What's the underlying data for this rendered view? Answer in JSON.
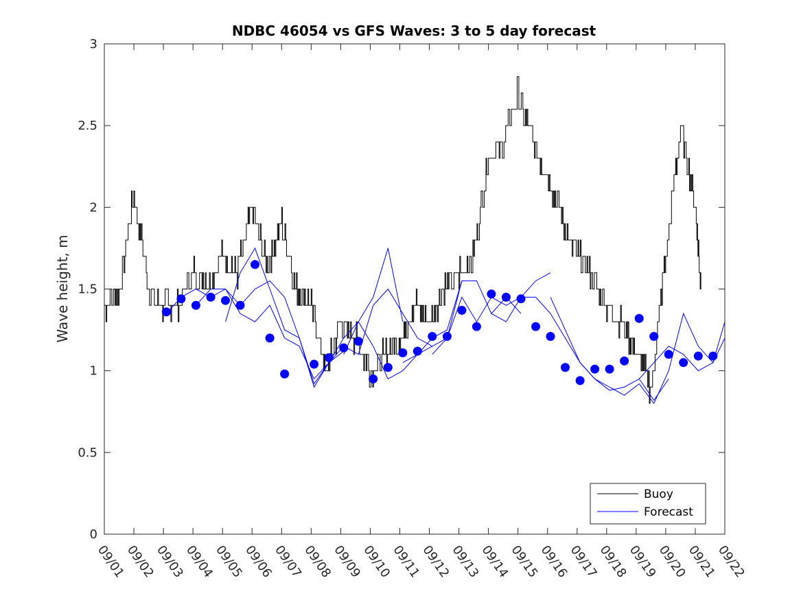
{
  "chart_data": {
    "type": "line",
    "title": "NDBC 46054 vs GFS Waves: 3 to 5 day forecast",
    "xlabel": "",
    "ylabel": "Wave height, m",
    "xlim": [
      0,
      21
    ],
    "ylim": [
      0,
      3
    ],
    "yticks": [
      0,
      0.5,
      1,
      1.5,
      2,
      2.5,
      3
    ],
    "ytick_labels": [
      "0",
      "0.5",
      "1",
      "1.5",
      "2",
      "2.5",
      "3"
    ],
    "xticks": [
      0,
      1,
      2,
      3,
      4,
      5,
      6,
      7,
      8,
      9,
      10,
      11,
      12,
      13,
      14,
      15,
      16,
      17,
      18,
      19,
      20,
      21
    ],
    "xtick_labels": [
      "09/01",
      "09/02",
      "09/03",
      "09/04",
      "09/05",
      "09/06",
      "09/07",
      "09/08",
      "09/09",
      "09/10",
      "09/11",
      "09/12",
      "09/13",
      "09/14",
      "09/15",
      "09/16",
      "09/17",
      "09/18",
      "09/19",
      "09/20",
      "09/21",
      "09/22"
    ],
    "x_units": "days since 09/01",
    "legend": {
      "placement": "bottom-right",
      "entries": [
        "Buoy",
        "Forecast"
      ]
    },
    "colors": {
      "buoy": "#000000",
      "forecast": "#0000ff",
      "axis": "#262626"
    },
    "series": [
      {
        "name": "Buoy",
        "color": "#000000",
        "x": [
          0,
          0.5,
          1,
          1.5,
          2,
          2.5,
          3,
          3.5,
          4,
          4.5,
          5,
          5.5,
          6,
          6.5,
          7,
          7.5,
          8,
          8.5,
          9,
          9.5,
          10,
          10.5,
          11,
          11.5,
          12,
          12.5,
          13,
          13.5,
          14,
          14.5,
          15,
          15.5,
          16,
          16.5,
          17,
          17.5,
          18,
          18.5,
          19,
          19.5,
          20,
          20.2
        ],
        "y": [
          1.4,
          1.5,
          2.1,
          1.5,
          1.4,
          1.4,
          1.6,
          1.55,
          1.7,
          1.6,
          2.0,
          1.65,
          1.9,
          1.5,
          1.4,
          1.0,
          1.3,
          1.2,
          1.0,
          1.1,
          1.2,
          1.4,
          1.3,
          1.5,
          1.6,
          1.7,
          2.3,
          2.4,
          2.7,
          2.4,
          2.2,
          1.9,
          1.7,
          1.6,
          1.4,
          1.3,
          1.1,
          0.9,
          1.7,
          2.5,
          2.0,
          1.5
        ],
        "noise": 0.08
      },
      {
        "name": "Forecast",
        "color": "#0000ff",
        "runs": [
          {
            "x": [
              2.1,
              2.6,
              3.1,
              3.6,
              4.1,
              4.6,
              5.1,
              5.6,
              6.1
            ],
            "y": [
              1.35,
              1.45,
              1.5,
              1.45,
              1.5,
              1.4,
              1.5,
              1.55,
              1.45
            ]
          },
          {
            "x": [
              3.1,
              3.6,
              4.1,
              4.6,
              5.1,
              5.6,
              6.1,
              6.6,
              7.1
            ],
            "y": [
              1.4,
              1.5,
              1.5,
              1.35,
              1.3,
              1.4,
              1.2,
              1.15,
              0.95
            ]
          },
          {
            "x": [
              4.1,
              4.6,
              5.1,
              5.6,
              6.1,
              6.6,
              7.1,
              7.6,
              8.1
            ],
            "y": [
              1.3,
              1.6,
              1.75,
              1.5,
              1.25,
              1.2,
              0.92,
              1.05,
              1.12
            ]
          },
          {
            "x": [
              6.1,
              6.6,
              7.1,
              7.6,
              8.1,
              8.6,
              9.1,
              9.6,
              10.1
            ],
            "y": [
              1.45,
              1.2,
              0.9,
              1.05,
              1.2,
              1.3,
              1.45,
              1.75,
              1.3
            ]
          },
          {
            "x": [
              7.1,
              7.6,
              8.1,
              8.6,
              9.1,
              9.6,
              10.1,
              10.6,
              11.1
            ],
            "y": [
              0.95,
              1.05,
              1.15,
              1.1,
              1.4,
              1.5,
              1.35,
              1.2,
              1.15
            ]
          },
          {
            "x": [
              8.1,
              8.6,
              9.1,
              9.6,
              10.1,
              10.6,
              11.1,
              11.6,
              12.1
            ],
            "y": [
              1.1,
              1.3,
              1.15,
              0.95,
              1.0,
              1.1,
              1.15,
              1.2,
              1.55
            ]
          },
          {
            "x": [
              10.1,
              10.6,
              11.1,
              11.6,
              12.1,
              12.6,
              13.1,
              13.6,
              14.1
            ],
            "y": [
              1.05,
              1.1,
              1.2,
              1.25,
              1.55,
              1.55,
              1.35,
              1.45,
              1.35
            ]
          },
          {
            "x": [
              11.1,
              11.6,
              12.1,
              12.6,
              13.1,
              13.6,
              14.1,
              14.6,
              15.1
            ],
            "y": [
              1.1,
              1.2,
              1.45,
              1.3,
              1.45,
              1.4,
              1.45,
              1.55,
              1.6
            ]
          },
          {
            "x": [
              13.1,
              13.6,
              14.1,
              14.6,
              15.1,
              15.6,
              16.1,
              16.6,
              17.1
            ],
            "y": [
              1.35,
              1.3,
              1.45,
              1.45,
              1.35,
              1.2,
              1.05,
              0.95,
              0.9
            ]
          },
          {
            "x": [
              15.1,
              15.6,
              16.1,
              16.6,
              17.1,
              17.6,
              18.1,
              18.6,
              19.1
            ],
            "y": [
              1.45,
              1.25,
              1.05,
              0.95,
              0.88,
              0.9,
              0.95,
              0.82,
              0.95
            ]
          },
          {
            "x": [
              17.1,
              17.6,
              18.1,
              18.6,
              19.1,
              19.6,
              20.1,
              20.6,
              21.0
            ],
            "y": [
              0.9,
              0.85,
              0.92,
              0.8,
              1.0,
              1.35,
              1.15,
              1.05,
              1.3
            ]
          },
          {
            "x": [
              18.1,
              18.6,
              19.1,
              19.6,
              20.1,
              20.6,
              21.0
            ],
            "y": [
              0.95,
              1.05,
              1.15,
              1.1,
              1.0,
              1.05,
              1.2
            ]
          }
        ],
        "markers": {
          "x": [
            2.1,
            2.6,
            3.1,
            3.6,
            4.1,
            4.6,
            5.1,
            5.6,
            6.1,
            7.1,
            7.6,
            8.1,
            8.6,
            9.1,
            9.6,
            10.1,
            10.6,
            11.1,
            11.6,
            12.1,
            12.6,
            13.1,
            13.6,
            14.1,
            14.6,
            15.1,
            15.6,
            16.1,
            16.6,
            17.1,
            17.6,
            18.1,
            18.6,
            19.1,
            19.6,
            20.1,
            20.6
          ],
          "y": [
            1.36,
            1.44,
            1.4,
            1.45,
            1.43,
            1.4,
            1.65,
            1.2,
            0.98,
            1.04,
            1.08,
            1.14,
            1.18,
            0.95,
            1.02,
            1.11,
            1.12,
            1.21,
            1.21,
            1.37,
            1.27,
            1.47,
            1.45,
            1.44,
            1.27,
            1.21,
            1.02,
            0.94,
            1.01,
            1.01,
            1.06,
            1.32,
            1.21,
            1.1,
            1.05,
            1.09,
            1.09
          ]
        }
      }
    ]
  }
}
